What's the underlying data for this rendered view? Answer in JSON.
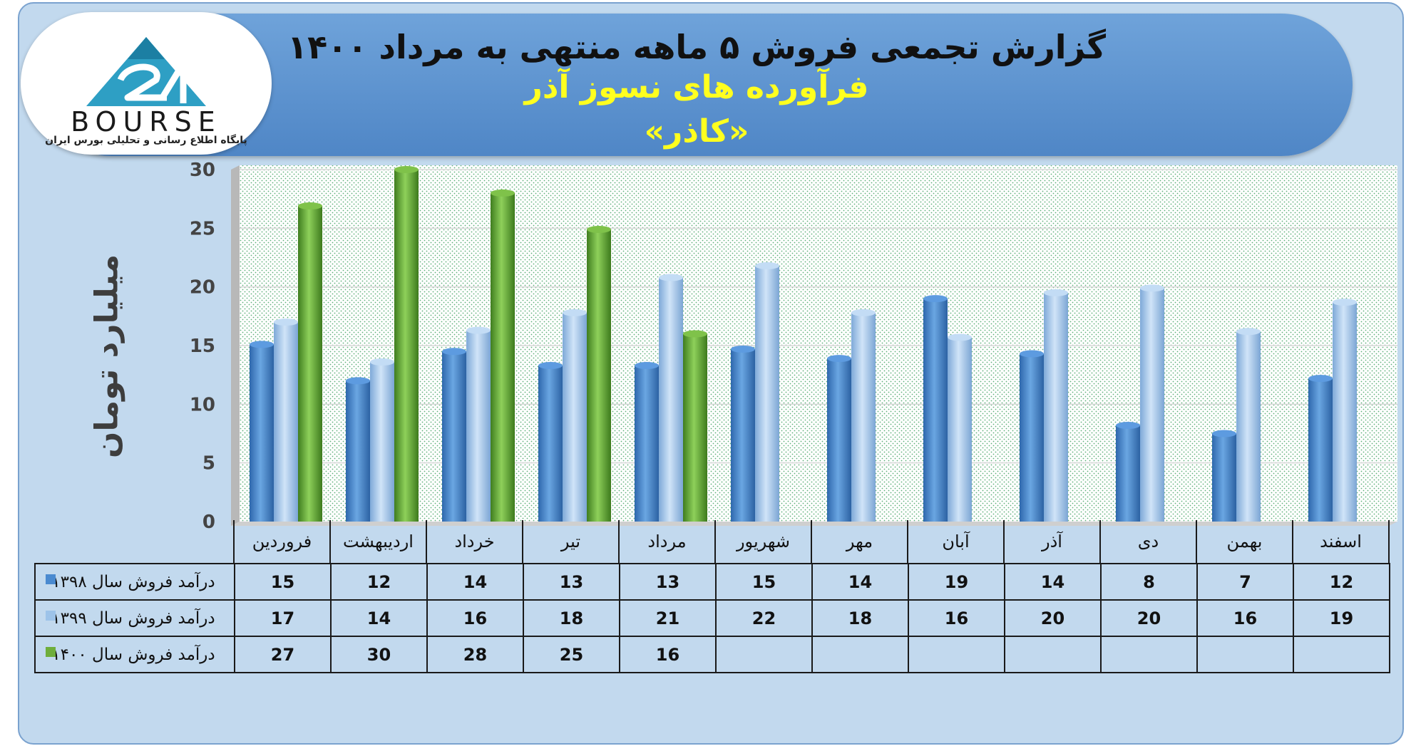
{
  "header": {
    "title_main": "گزارش تجمعی فروش ۵ ماهه منتهی به مرداد ۱۴۰۰",
    "title_sub": "فرآورده های نسوز آذر",
    "title_name": "«کاذر»"
  },
  "logo": {
    "wordmark": "BOURSE",
    "tagline": "پایگاه اطلاع رسانی و تحلیلی بورس ایران"
  },
  "colors": {
    "series_1398": "#4a8ad0",
    "series_1399": "#9dc3e9",
    "series_1400": "#6fae3c"
  },
  "chart_data": {
    "type": "bar",
    "ylabel": "میلیارد تومان",
    "ylim": [
      0,
      30
    ],
    "yticks": [
      0,
      5,
      10,
      15,
      20,
      25,
      30
    ],
    "grid": true,
    "categories": [
      "فروردین",
      "اردیبهشت",
      "خرداد",
      "تیر",
      "مرداد",
      "شهریور",
      "مهر",
      "آبان",
      "آذر",
      "دی",
      "بهمن",
      "اسفند"
    ],
    "series": [
      {
        "name": "درآمد فروش سال ۱۳۹۸",
        "values": [
          15,
          12,
          14,
          13,
          13,
          15,
          14,
          19,
          14,
          8,
          7,
          12
        ],
        "plotted": [
          15.1,
          12.0,
          14.5,
          13.3,
          13.3,
          14.7,
          13.9,
          19.0,
          14.3,
          8.2,
          7.5,
          12.2
        ]
      },
      {
        "name": "درآمد فروش سال ۱۳۹۹",
        "values": [
          17,
          14,
          16,
          18,
          21,
          22,
          18,
          16,
          20,
          20,
          16,
          19
        ],
        "plotted": [
          17.0,
          13.6,
          16.3,
          17.8,
          20.8,
          21.8,
          17.8,
          15.7,
          19.5,
          19.9,
          16.2,
          18.7
        ]
      },
      {
        "name": "درآمد فروش سال ۱۴۰۰",
        "values": [
          27,
          30,
          28,
          25,
          16,
          null,
          null,
          null,
          null,
          null,
          null,
          null
        ],
        "plotted": [
          26.9,
          30.0,
          28.0,
          24.9,
          16.0,
          null,
          null,
          null,
          null,
          null,
          null,
          null
        ]
      }
    ]
  }
}
